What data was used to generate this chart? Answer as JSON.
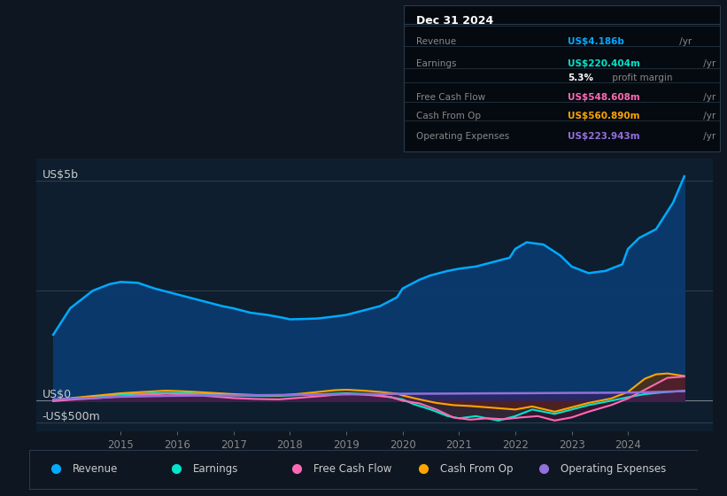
{
  "bg_color": "#0e1621",
  "plot_bg_color": "#0e1e2e",
  "ylabel_top": "US$5b",
  "ylabel_zero": "US$0",
  "ylabel_neg": "-US$500m",
  "ylim": [
    -700,
    5500
  ],
  "xlim": [
    2013.5,
    2025.5
  ],
  "xticks": [
    2015,
    2016,
    2017,
    2018,
    2019,
    2020,
    2021,
    2022,
    2023,
    2024
  ],
  "legend_items": [
    {
      "label": "Revenue",
      "color": "#00aaff"
    },
    {
      "label": "Earnings",
      "color": "#00e5cc"
    },
    {
      "label": "Free Cash Flow",
      "color": "#ff69b4"
    },
    {
      "label": "Cash From Op",
      "color": "#ffa500"
    },
    {
      "label": "Operating Expenses",
      "color": "#9370db"
    }
  ],
  "revenue_x": [
    2013.8,
    2014.1,
    2014.5,
    2014.8,
    2015.0,
    2015.3,
    2015.6,
    2015.9,
    2016.2,
    2016.5,
    2016.8,
    2017.0,
    2017.3,
    2017.6,
    2017.9,
    2018.0,
    2018.3,
    2018.5,
    2018.7,
    2019.0,
    2019.3,
    2019.6,
    2019.9,
    2020.0,
    2020.3,
    2020.5,
    2020.8,
    2021.0,
    2021.3,
    2021.6,
    2021.9,
    2022.0,
    2022.2,
    2022.5,
    2022.8,
    2023.0,
    2023.3,
    2023.6,
    2023.9,
    2024.0,
    2024.2,
    2024.5,
    2024.8,
    2025.0
  ],
  "revenue_y": [
    1500,
    2100,
    2500,
    2650,
    2700,
    2680,
    2550,
    2450,
    2350,
    2250,
    2150,
    2100,
    2000,
    1950,
    1880,
    1850,
    1860,
    1870,
    1900,
    1950,
    2050,
    2150,
    2350,
    2550,
    2750,
    2850,
    2950,
    3000,
    3050,
    3150,
    3250,
    3450,
    3600,
    3550,
    3300,
    3050,
    2900,
    2950,
    3100,
    3450,
    3700,
    3900,
    4500,
    5100
  ],
  "earnings_x": [
    2013.8,
    2014.2,
    2014.6,
    2015.0,
    2015.4,
    2015.8,
    2016.2,
    2016.6,
    2017.0,
    2017.4,
    2017.8,
    2018.2,
    2018.6,
    2019.0,
    2019.4,
    2019.7,
    2020.0,
    2020.2,
    2020.5,
    2020.8,
    2021.0,
    2021.3,
    2021.7,
    2022.0,
    2022.3,
    2022.7,
    2023.0,
    2023.3,
    2023.7,
    2024.0,
    2024.3,
    2024.7,
    2025.0
  ],
  "earnings_y": [
    10,
    60,
    100,
    140,
    160,
    180,
    170,
    150,
    120,
    110,
    110,
    130,
    150,
    170,
    150,
    100,
    30,
    -80,
    -200,
    -350,
    -400,
    -350,
    -450,
    -350,
    -200,
    -300,
    -200,
    -100,
    0,
    80,
    150,
    200,
    220
  ],
  "fcf_x": [
    2013.8,
    2014.2,
    2014.6,
    2015.0,
    2015.4,
    2015.8,
    2016.2,
    2016.6,
    2017.0,
    2017.4,
    2017.8,
    2018.2,
    2018.6,
    2019.0,
    2019.4,
    2019.8,
    2020.0,
    2020.3,
    2020.6,
    2020.9,
    2021.2,
    2021.5,
    2021.8,
    2022.1,
    2022.4,
    2022.7,
    2023.0,
    2023.3,
    2023.7,
    2024.0,
    2024.3,
    2024.7,
    2025.0
  ],
  "fcf_y": [
    -10,
    30,
    60,
    100,
    130,
    160,
    140,
    100,
    60,
    40,
    30,
    70,
    110,
    160,
    130,
    80,
    0,
    -60,
    -200,
    -380,
    -430,
    -400,
    -420,
    -380,
    -350,
    -450,
    -380,
    -250,
    -100,
    50,
    250,
    520,
    549
  ],
  "cop_x": [
    2013.8,
    2014.2,
    2014.6,
    2015.0,
    2015.4,
    2015.8,
    2016.2,
    2016.6,
    2017.0,
    2017.4,
    2017.8,
    2018.2,
    2018.5,
    2018.8,
    2019.0,
    2019.3,
    2019.6,
    2019.9,
    2020.0,
    2020.3,
    2020.6,
    2020.9,
    2021.2,
    2021.5,
    2022.0,
    2022.3,
    2022.7,
    2023.0,
    2023.3,
    2023.7,
    2024.0,
    2024.3,
    2024.5,
    2024.7,
    2025.0
  ],
  "cop_y": [
    20,
    70,
    120,
    170,
    200,
    230,
    210,
    180,
    150,
    130,
    120,
    160,
    200,
    240,
    250,
    230,
    200,
    160,
    120,
    30,
    -50,
    -100,
    -120,
    -150,
    -200,
    -130,
    -250,
    -150,
    -50,
    50,
    200,
    500,
    600,
    620,
    561
  ],
  "ope_x": [
    2013.8,
    2014.2,
    2014.6,
    2015.0,
    2015.4,
    2015.8,
    2016.2,
    2016.6,
    2017.0,
    2017.4,
    2017.8,
    2018.2,
    2018.6,
    2019.0,
    2019.4,
    2019.8,
    2020.0,
    2020.4,
    2020.8,
    2021.2,
    2021.6,
    2022.0,
    2022.4,
    2022.8,
    2023.0,
    2023.4,
    2023.8,
    2024.0,
    2024.4,
    2024.8,
    2025.0
  ],
  "ope_y": [
    30,
    50,
    70,
    90,
    100,
    110,
    115,
    120,
    120,
    125,
    130,
    135,
    140,
    145,
    150,
    155,
    158,
    160,
    162,
    165,
    168,
    170,
    173,
    176,
    178,
    180,
    183,
    185,
    195,
    210,
    224
  ]
}
